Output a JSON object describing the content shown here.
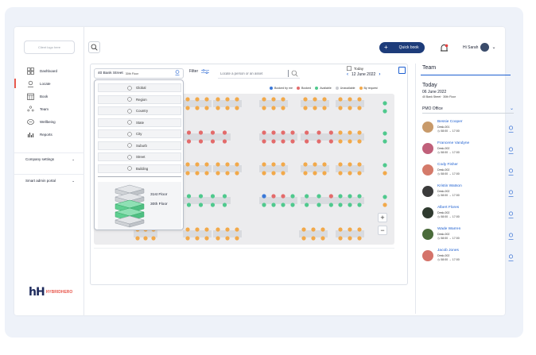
{
  "sidebar": {
    "logo_placeholder": "Client logo here",
    "items": [
      {
        "label": "Dashboard",
        "icon": "dashboard-icon"
      },
      {
        "label": "Locate",
        "icon": "locate-icon",
        "active": true
      },
      {
        "label": "Book",
        "icon": "book-icon"
      },
      {
        "label": "Team",
        "icon": "team-icon"
      },
      {
        "label": "Wellbeing",
        "icon": "wellbeing-icon"
      },
      {
        "label": "Reports",
        "icon": "reports-icon"
      }
    ],
    "company_settings": "Company settings",
    "smart_admin": "Smart admin portal",
    "brand_mark": "hH",
    "brand_text": "HYBRIDHERO"
  },
  "header": {
    "quick_book": "Quick book",
    "greeting": "Hi Sarah"
  },
  "toolbar": {
    "location": "40 Bank Street",
    "floor": "30th Floor",
    "filter": "Filter",
    "search_placeholder": "Locate a person or an asset",
    "today": "Today",
    "date": "12 June 2022"
  },
  "legend": [
    {
      "label": "Booked by me",
      "color": "#3a78d8"
    },
    {
      "label": "Booked",
      "color": "#e36b6b"
    },
    {
      "label": "Available",
      "color": "#4fc98d"
    },
    {
      "label": "Unavailable",
      "color": "#c9cbd0"
    },
    {
      "label": "By request",
      "color": "#f2a94a"
    }
  ],
  "dropdown": {
    "items": [
      "Global",
      "Region",
      "Country",
      "State",
      "City",
      "Suburb",
      "Street",
      "Building"
    ],
    "floors": [
      "31st Floor",
      "30th Floor"
    ]
  },
  "zoom": {
    "in": "+",
    "out": "−"
  },
  "right_panel": {
    "tab": "Team",
    "today": "Today",
    "date": "06 June 2022",
    "address": "40 Bank Street · 30th Floor",
    "office": "PMO Office",
    "people": [
      {
        "name": "Bessie Cooper",
        "desk": "Desk-001",
        "time": "◷ 08:00 → 17:00",
        "avatar": "#c89a6a"
      },
      {
        "name": "Francene Vandyne",
        "desk": "Desk-002",
        "time": "◷ 08:00 → 17:00",
        "avatar": "#c0607a"
      },
      {
        "name": "Cody Fisher",
        "desk": "Desk-002",
        "time": "◷ 08:00 → 17:00",
        "avatar": "#d47a6a"
      },
      {
        "name": "Kristin Watson",
        "desk": "Desk-002",
        "time": "◷ 08:00 → 17:00",
        "avatar": "#3b3b3b"
      },
      {
        "name": "Albert Flores",
        "desk": "Desk-002",
        "time": "◷ 08:00 → 17:00",
        "avatar": "#2f3a2f"
      },
      {
        "name": "Wade Warren",
        "desk": "Desk-002",
        "time": "◷ 08:00 → 17:00",
        "avatar": "#4a6b3a"
      },
      {
        "name": "Jacob Jones",
        "desk": "Desk-002",
        "time": "◷ 08:00 → 17:00",
        "avatar": "#d4736a"
      }
    ]
  }
}
